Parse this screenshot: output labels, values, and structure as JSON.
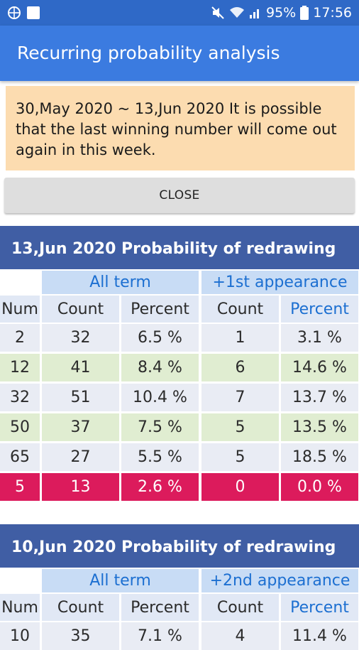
{
  "status_bar": {
    "left_icons": [
      "globe-icon",
      "square-icon"
    ],
    "battery": "95%",
    "time": "17:56",
    "right_icons": [
      "mute-icon",
      "wifi-icon",
      "signal-icon",
      "battery-icon"
    ]
  },
  "app_bar": {
    "title": "Recurring probability analysis"
  },
  "notice": {
    "text": "30,May 2020 ~ 13,Jun 2020 It is possible that the last winning number will come out again in this week."
  },
  "close_button": {
    "label": "CLOSE"
  },
  "colors": {
    "status_bar": "#2f69c7",
    "app_bar": "#3b7be0",
    "section_header": "#405ea4",
    "notice": "#fcdcb0",
    "highlight": "#dc1b5c",
    "row_blue": "#e9ecf4",
    "row_green": "#e0edd1"
  },
  "sections": [
    {
      "title": "13,Jun 2020 Probability of redrawing",
      "group_all": "All term",
      "group_appearance": "+1st appearance",
      "columns": [
        "Num",
        "Count",
        "Percent",
        "Count",
        "Percent"
      ],
      "rows": [
        [
          "2",
          "32",
          "6.5 %",
          "1",
          "3.1 %"
        ],
        [
          "12",
          "41",
          "8.4 %",
          "6",
          "14.6 %"
        ],
        [
          "32",
          "51",
          "10.4 %",
          "7",
          "13.7 %"
        ],
        [
          "50",
          "37",
          "7.5 %",
          "5",
          "13.5 %"
        ],
        [
          "65",
          "27",
          "5.5 %",
          "5",
          "18.5 %"
        ],
        [
          "5",
          "13",
          "2.6 %",
          "0",
          "0.0 %"
        ]
      ]
    },
    {
      "title": "10,Jun 2020 Probability of redrawing",
      "group_all": "All term",
      "group_appearance": "+2nd appearance",
      "columns": [
        "Num",
        "Count",
        "Percent",
        "Count",
        "Percent"
      ],
      "rows": [
        [
          "10",
          "35",
          "7.1 %",
          "4",
          "11.4 %"
        ]
      ]
    }
  ]
}
